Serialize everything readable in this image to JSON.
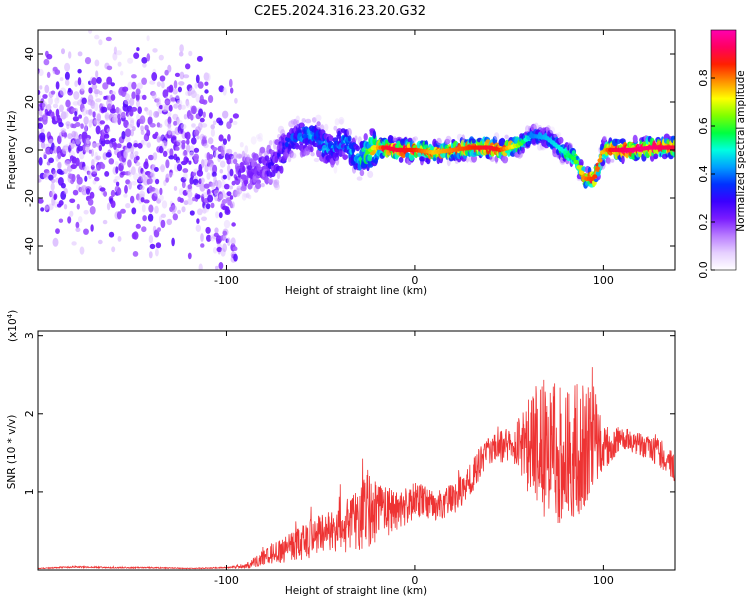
{
  "title": "C2E5.2024.316.23.20.G32",
  "chart_data": [
    {
      "type": "heatmap",
      "xlabel": "Height of straight line (km)",
      "ylabel": "Frequency (Hz)",
      "xlim": [
        -200,
        138
      ],
      "ylim": [
        -50,
        50
      ],
      "xticks": [
        -100,
        0,
        100
      ],
      "yticks": [
        -40,
        -20,
        0,
        20,
        40
      ],
      "colorbar": {
        "label": "Normalized spectral amplitude",
        "range": [
          0,
          1
        ],
        "ticks": [
          0.0,
          0.2,
          0.4,
          0.6,
          0.8
        ],
        "tick_labels": [
          "0.0",
          "0.2",
          "0.4",
          "0.6",
          "0.8"
        ],
        "colormap": [
          "#ffffff",
          "#e6d0ff",
          "#b97cff",
          "#7a1cff",
          "#3a00ff",
          "#0030ff",
          "#00a0ff",
          "#00ffe0",
          "#00ff40",
          "#80ff00",
          "#ffff00",
          "#ff9000",
          "#ff2000",
          "#ff0060",
          "#ff00b0"
        ]
      },
      "ridge": {
        "x": [
          -200,
          -180,
          -160,
          -140,
          -120,
          -105,
          -95,
          -85,
          -75,
          -65,
          -55,
          -45,
          -38,
          -30,
          -22,
          -15,
          -10,
          0,
          10,
          20,
          30,
          40,
          45,
          55,
          62,
          70,
          78,
          85,
          90,
          95,
          100,
          105,
          115,
          125,
          138
        ],
        "freq": [
          5,
          3,
          6,
          2,
          2,
          -16,
          -10,
          -8,
          -6,
          5,
          6,
          0,
          4,
          -4,
          1,
          1,
          0,
          0,
          -1,
          0,
          1,
          1,
          0,
          2,
          6,
          5,
          0,
          -4,
          -12,
          -12,
          0,
          0,
          0,
          1,
          1
        ],
        "amplitude": [
          0.1,
          0.1,
          0.1,
          0.1,
          0.12,
          0.18,
          0.2,
          0.22,
          0.25,
          0.35,
          0.4,
          0.38,
          0.4,
          0.45,
          0.7,
          0.9,
          0.9,
          0.85,
          0.75,
          0.8,
          0.85,
          0.9,
          0.85,
          0.65,
          0.4,
          0.45,
          0.5,
          0.6,
          0.8,
          0.85,
          0.75,
          0.9,
          0.95,
          0.95,
          0.9
        ]
      }
    },
    {
      "type": "line",
      "xlabel": "Height of straight line (km)",
      "ylabel": "SNR (10 * v/v)",
      "yscale_label": "(x10",
      "yscale_exp": "4",
      "yscale_close": ")",
      "xlim": [
        -200,
        138
      ],
      "ylim": [
        0,
        30600
      ],
      "xticks": [
        -100,
        0,
        100
      ],
      "yticks": [
        10000,
        20000,
        30000
      ],
      "ytick_labels": [
        "1",
        "2",
        "3"
      ],
      "color": "#ee3333",
      "series": [
        {
          "x": [
            -200,
            -180,
            -160,
            -140,
            -120,
            -100,
            -90,
            -80,
            -70,
            -60,
            -50,
            -40,
            -30,
            -25,
            -20,
            -10,
            0,
            10,
            20,
            30,
            40,
            50,
            55,
            60,
            65,
            70,
            75,
            80,
            85,
            90,
            95,
            100,
            110,
            120,
            130,
            138
          ],
          "y": [
            200,
            400,
            300,
            300,
            200,
            300,
            500,
            1500,
            2500,
            3500,
            4500,
            5000,
            6500,
            8000,
            7000,
            7500,
            9000,
            8000,
            9000,
            12000,
            15500,
            16000,
            17000,
            16000,
            16000,
            15500,
            15000,
            15500,
            15500,
            16000,
            16500,
            15500,
            17000,
            16000,
            15000,
            13000
          ],
          "noise": [
            50,
            100,
            80,
            80,
            60,
            80,
            250,
            1200,
            1600,
            2400,
            2600,
            3000,
            4500,
            5000,
            4000,
            2500,
            2500,
            2000,
            2000,
            2500,
            1800,
            2200,
            4500,
            7000,
            8500,
            9500,
            10000,
            9500,
            9000,
            8000,
            7000,
            3000,
            1500,
            1500,
            1800,
            2000
          ]
        }
      ]
    }
  ]
}
